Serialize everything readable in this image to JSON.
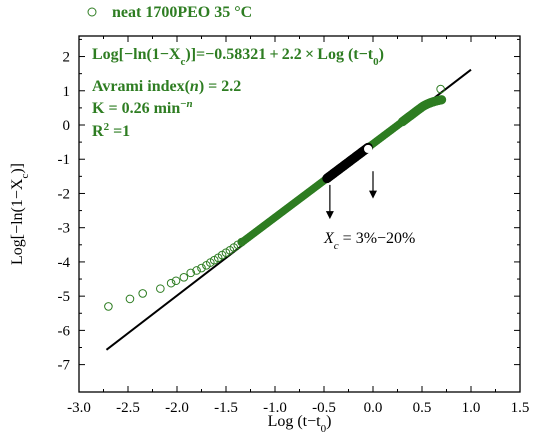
{
  "chart_data": {
    "type": "scatter",
    "legend": {
      "label": "neat 1700PEO  35 °C",
      "placement": "top-left, above plot"
    },
    "xlabel": "Log (t−t0)",
    "ylabel": "Log[−ln(1−Xc)]",
    "xlim": [
      -3.0,
      1.5
    ],
    "ylim": [
      -7.8,
      2.6
    ],
    "xticks": [
      -3.0,
      -2.5,
      -2.0,
      -1.5,
      -1.0,
      -0.5,
      0.0,
      0.5,
      1.0,
      1.5
    ],
    "yticks": [
      -7,
      -6,
      -5,
      -4,
      -3,
      -2,
      -1,
      0,
      1,
      2
    ],
    "xtick_labels": [
      "-3.0",
      "-2.5",
      "-2.0",
      "-1.5",
      "-1.0",
      "-0.5",
      "0.0",
      "0.5",
      "1.0",
      "1.5"
    ],
    "ytick_labels": [
      "-7",
      "-6",
      "-5",
      "-4",
      "-3",
      "-2",
      "-1",
      "0",
      "1",
      "2"
    ],
    "grid": false,
    "colors": {
      "data": "#2e7d22",
      "fit": "#000000",
      "annotation": "#2e7d22"
    },
    "fit_line": {
      "intercept": -0.58321,
      "slope": 2.2,
      "x_range": [
        -2.72,
        1.0
      ]
    },
    "series": [
      {
        "marker": "open-circle",
        "sparse_points": [
          [
            -2.7,
            -5.3
          ],
          [
            -2.48,
            -5.08
          ],
          [
            -2.35,
            -4.92
          ],
          [
            -2.17,
            -4.78
          ],
          [
            -2.06,
            -4.62
          ],
          [
            -2.01,
            -4.55
          ],
          [
            -1.93,
            -4.45
          ],
          [
            -1.86,
            -4.32
          ],
          [
            -1.8,
            -4.25
          ],
          [
            -1.75,
            -4.18
          ],
          [
            -1.7,
            -4.1
          ],
          [
            -1.66,
            -4.02
          ],
          [
            -1.62,
            -3.95
          ],
          [
            -1.58,
            -3.88
          ],
          [
            -1.54,
            -3.8
          ],
          [
            -1.5,
            -3.73
          ],
          [
            -1.46,
            -3.66
          ],
          [
            -1.42,
            -3.58
          ],
          [
            -1.38,
            -3.5
          ],
          [
            -1.34,
            -3.42
          ]
        ],
        "dense_band": {
          "x_range": [
            -1.34,
            0.7
          ],
          "y_range": [
            -3.42,
            1.05
          ],
          "note": "overlapping open-circle markers forming a solid green band"
        },
        "highlight": {
          "label": "Xc = 3%−20%",
          "x_range": [
            -0.47,
            -0.05
          ],
          "color": "#000000"
        },
        "special_points": [
          {
            "x": -0.05,
            "y": -0.7,
            "style": "white-filled"
          },
          {
            "x": 0.69,
            "y": 1.05,
            "style": "open-circle"
          }
        ]
      }
    ],
    "annotations": {
      "equation": "Log[−ln(1−Xc)]=−0.58321+2.2×Log (t−t0)",
      "avrami": "Avrami index(n)  = 2.2",
      "k": "K = 0.26 min",
      "k_sup": "−n",
      "r2": "R",
      "r2_sup": "2",
      "r2_rest": " =1",
      "xc_label": "Xc = 3%−20%",
      "xc_x": "X",
      "xc_sub": "c",
      "xc_rest": " = 3%−20%"
    },
    "arrows": [
      {
        "from": [
          -0.44,
          -1.75
        ],
        "to": [
          -0.44,
          -2.75
        ]
      },
      {
        "from": [
          0.0,
          -1.35
        ],
        "to": [
          0.0,
          -2.15
        ]
      }
    ]
  }
}
